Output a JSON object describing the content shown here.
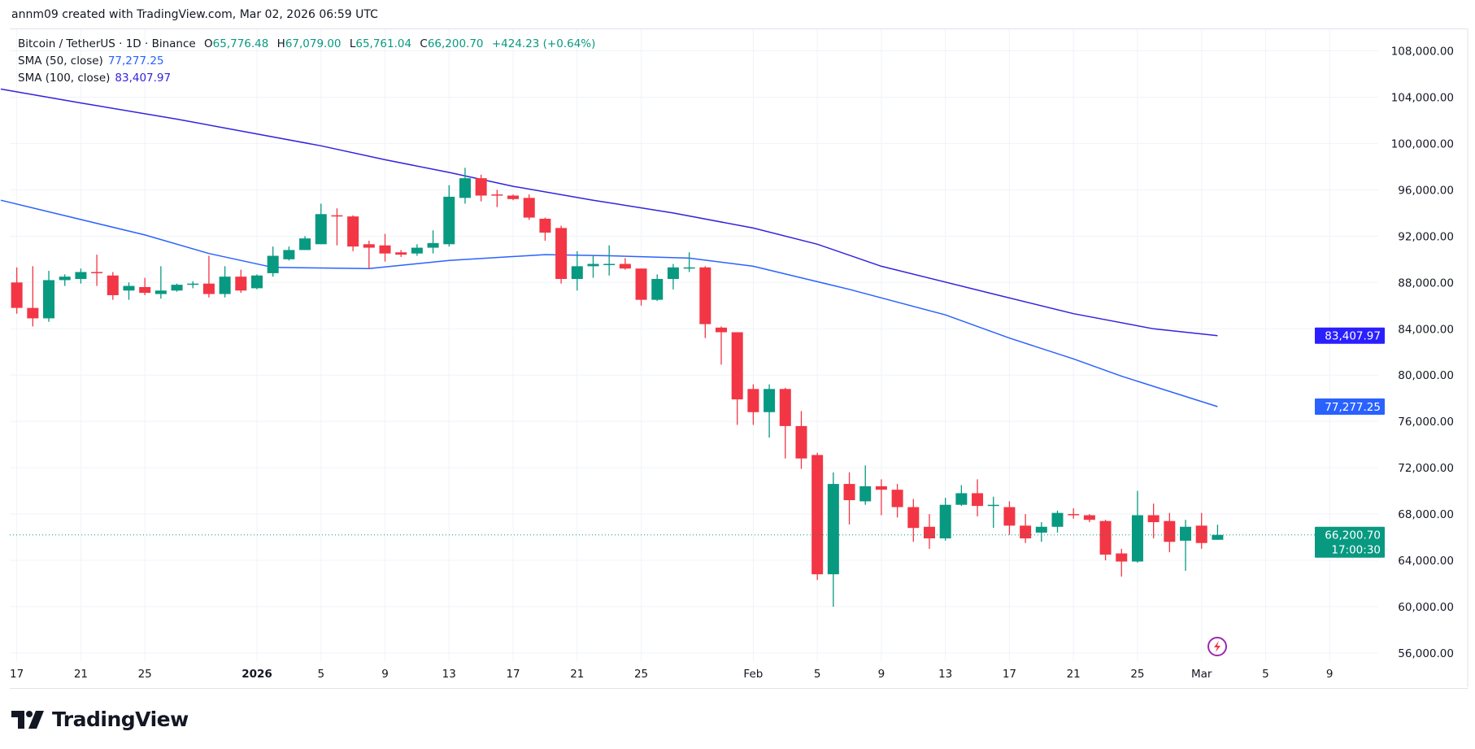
{
  "credit": "annm09 created with TradingView.com, Mar 02, 2026 06:59 UTC",
  "legend": {
    "symbol": "Bitcoin / TetherUS · 1D · Binance",
    "open_label": "O",
    "open": "65,776.48",
    "high_label": "H",
    "high": "67,079.00",
    "low_label": "L",
    "low": "65,761.04",
    "close_label": "C",
    "close": "66,200.70",
    "change": "+424.23 (+0.64%)",
    "sma50_label": "SMA (50, close)",
    "sma50_value": "77,277.25",
    "sma100_label": "SMA (100, close)",
    "sma100_value": "83,407.97"
  },
  "logo_text": "TradingView",
  "colors": {
    "up": "#089981",
    "down": "#f23645",
    "sma50": "#2962ff",
    "sma100": "#3322dd",
    "grid": "#f0f3fa"
  },
  "icons": {
    "alert": "lightning-icon",
    "logo": "tradingview-logo-icon"
  },
  "chart_data": {
    "type": "candlestick",
    "interval": "1D",
    "y_ticks": [
      "108,000.00",
      "104,000.00",
      "100,000.00",
      "96,000.00",
      "92,000.00",
      "88,000.00",
      "84,000.00",
      "80,000.00",
      "76,000.00",
      "72,000.00",
      "68,000.00",
      "64,000.00",
      "60,000.00",
      "56,000.00"
    ],
    "ylim": [
      56000,
      108000
    ],
    "x_ticks": [
      {
        "date": "2025-12-17",
        "label": "17"
      },
      {
        "date": "2025-12-21",
        "label": "21"
      },
      {
        "date": "2025-12-25",
        "label": "25"
      },
      {
        "date": "2026-01-01",
        "label": "2026",
        "bold": true
      },
      {
        "date": "2026-01-05",
        "label": "5"
      },
      {
        "date": "2026-01-09",
        "label": "9"
      },
      {
        "date": "2026-01-13",
        "label": "13"
      },
      {
        "date": "2026-01-17",
        "label": "17"
      },
      {
        "date": "2026-01-21",
        "label": "21"
      },
      {
        "date": "2026-01-25",
        "label": "25"
      },
      {
        "date": "2026-02-01",
        "label": "Feb"
      },
      {
        "date": "2026-02-05",
        "label": "5"
      },
      {
        "date": "2026-02-09",
        "label": "9"
      },
      {
        "date": "2026-02-13",
        "label": "13"
      },
      {
        "date": "2026-02-17",
        "label": "17"
      },
      {
        "date": "2026-02-21",
        "label": "21"
      },
      {
        "date": "2026-02-25",
        "label": "25"
      },
      {
        "date": "2026-03-01",
        "label": "Mar"
      },
      {
        "date": "2026-03-05",
        "label": "5"
      },
      {
        "date": "2026-03-09",
        "label": "9"
      }
    ],
    "first_date": "2025-12-17",
    "ohlc": [
      [
        88000,
        89300,
        85300,
        85800
      ],
      [
        85800,
        89400,
        84200,
        84900
      ],
      [
        84900,
        89000,
        84600,
        88200
      ],
      [
        88200,
        88700,
        87700,
        88500
      ],
      [
        88300,
        89200,
        87900,
        88900
      ],
      [
        88900,
        90400,
        87700,
        88800
      ],
      [
        88600,
        88900,
        86500,
        86900
      ],
      [
        87300,
        88000,
        86500,
        87700
      ],
      [
        87600,
        88400,
        86900,
        87100
      ],
      [
        87000,
        89400,
        86600,
        87300
      ],
      [
        87300,
        87900,
        87200,
        87800
      ],
      [
        87800,
        88100,
        87500,
        87900
      ],
      [
        87900,
        90300,
        86700,
        87000
      ],
      [
        87000,
        89400,
        86700,
        88500
      ],
      [
        88500,
        89100,
        87100,
        87300
      ],
      [
        87500,
        88700,
        87400,
        88600
      ],
      [
        88800,
        91100,
        88500,
        90300
      ],
      [
        90000,
        91100,
        89900,
        90800
      ],
      [
        90800,
        92000,
        90800,
        91800
      ],
      [
        91300,
        94800,
        91300,
        93900
      ],
      [
        93800,
        94400,
        91200,
        93700
      ],
      [
        93700,
        93800,
        90700,
        91100
      ],
      [
        91300,
        91600,
        89200,
        91000
      ],
      [
        91200,
        92200,
        89800,
        90500
      ],
      [
        90600,
        90800,
        90200,
        90400
      ],
      [
        90500,
        91300,
        90300,
        91000
      ],
      [
        91000,
        92500,
        90500,
        91400
      ],
      [
        91300,
        96400,
        91100,
        95400
      ],
      [
        95300,
        97900,
        94800,
        97000
      ],
      [
        97000,
        97300,
        95000,
        95500
      ],
      [
        95600,
        96000,
        94500,
        95500
      ],
      [
        95500,
        95600,
        95100,
        95200
      ],
      [
        95300,
        95600,
        93400,
        93600
      ],
      [
        93500,
        93600,
        91600,
        92300
      ],
      [
        92700,
        92900,
        87900,
        88300
      ],
      [
        88300,
        90700,
        87300,
        89400
      ],
      [
        89400,
        90300,
        88400,
        89600
      ],
      [
        89500,
        91200,
        88600,
        89600
      ],
      [
        89600,
        90100,
        89100,
        89200
      ],
      [
        89200,
        89200,
        86000,
        86500
      ],
      [
        86500,
        88700,
        86400,
        88300
      ],
      [
        88300,
        89600,
        87400,
        89300
      ],
      [
        89200,
        90600,
        88900,
        89300
      ],
      [
        89300,
        89400,
        83200,
        84400
      ],
      [
        84100,
        84200,
        80900,
        83700
      ],
      [
        83700,
        83700,
        75700,
        77900
      ],
      [
        78800,
        79200,
        75700,
        76800
      ],
      [
        76800,
        79200,
        74600,
        78800
      ],
      [
        78800,
        78900,
        72800,
        75600
      ],
      [
        75600,
        76900,
        71900,
        72800
      ],
      [
        73100,
        73300,
        62300,
        62800
      ],
      [
        62800,
        71600,
        60000,
        70600
      ],
      [
        70600,
        71600,
        67100,
        69200
      ],
      [
        69100,
        72200,
        68800,
        70400
      ],
      [
        70400,
        71000,
        67900,
        70100
      ],
      [
        70100,
        70600,
        67700,
        68600
      ],
      [
        68600,
        69300,
        65600,
        66800
      ],
      [
        66900,
        68000,
        65000,
        65900
      ],
      [
        65900,
        69400,
        65700,
        68800
      ],
      [
        68800,
        70500,
        68700,
        69800
      ],
      [
        69800,
        71000,
        67800,
        68700
      ],
      [
        68700,
        69500,
        66800,
        68800
      ],
      [
        68600,
        69100,
        66200,
        67000
      ],
      [
        67000,
        68000,
        65500,
        65900
      ],
      [
        66400,
        67300,
        65600,
        66900
      ],
      [
        66900,
        68300,
        66400,
        68100
      ],
      [
        68000,
        68500,
        67600,
        67900
      ],
      [
        67900,
        68000,
        67300,
        67500
      ],
      [
        67400,
        67500,
        64000,
        64500
      ],
      [
        64600,
        65000,
        62600,
        63900
      ],
      [
        63900,
        70000,
        63800,
        67900
      ],
      [
        67900,
        68900,
        65900,
        67300
      ],
      [
        67400,
        68100,
        64700,
        65600
      ],
      [
        65700,
        67500,
        63100,
        66900
      ],
      [
        67000,
        68100,
        65000,
        65500
      ],
      [
        65776.48,
        67079.0,
        65761.04,
        66200.7
      ]
    ],
    "sma50": [
      [
        "2025-12-16",
        95100
      ],
      [
        "2025-12-25",
        92100
      ],
      [
        "2025-12-29",
        90500
      ],
      [
        "2026-01-02",
        89300
      ],
      [
        "2026-01-08",
        89200
      ],
      [
        "2026-01-13",
        89900
      ],
      [
        "2026-01-19",
        90400
      ],
      [
        "2026-01-23",
        90300
      ],
      [
        "2026-01-28",
        90100
      ],
      [
        "2026-02-01",
        89400
      ],
      [
        "2026-02-04",
        88400
      ],
      [
        "2026-02-07",
        87400
      ],
      [
        "2026-02-13",
        85200
      ],
      [
        "2026-02-17",
        83200
      ],
      [
        "2026-02-21",
        81400
      ],
      [
        "2026-02-24",
        79900
      ],
      [
        "2026-03-02",
        77277.25
      ]
    ],
    "sma100": [
      [
        "2025-12-16",
        104700
      ],
      [
        "2025-12-21",
        103500
      ],
      [
        "2025-12-27",
        102100
      ],
      [
        "2026-01-05",
        99800
      ],
      [
        "2026-01-09",
        98600
      ],
      [
        "2026-01-13",
        97500
      ],
      [
        "2026-01-17",
        96300
      ],
      [
        "2026-01-22",
        95100
      ],
      [
        "2026-01-27",
        94000
      ],
      [
        "2026-02-01",
        92700
      ],
      [
        "2026-02-05",
        91300
      ],
      [
        "2026-02-09",
        89400
      ],
      [
        "2026-02-16",
        87000
      ],
      [
        "2026-02-21",
        85300
      ],
      [
        "2026-02-26",
        84000
      ],
      [
        "2026-03-02",
        83407.97
      ]
    ],
    "last_price": {
      "value": 66200.7,
      "label": "66,200.70",
      "countdown": "17:00:30"
    },
    "sma50_tag": "77,277.25",
    "sma100_tag": "83,407.97"
  }
}
